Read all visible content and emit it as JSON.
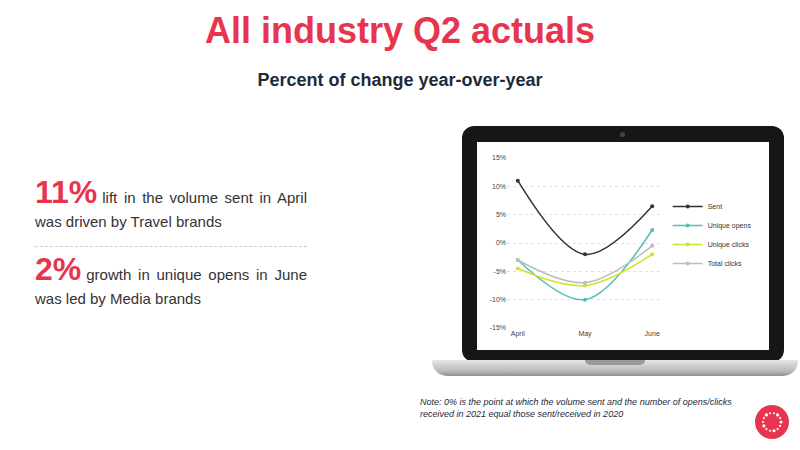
{
  "header": {
    "title": "All industry Q2 actuals",
    "subtitle": "Percent of change year-over-year"
  },
  "callouts": [
    {
      "figure": "11%",
      "text": "lift in the volume sent in April was driven by Travel brands"
    },
    {
      "figure": "2%",
      "text": "growth in unique opens in June was led by Media brands"
    }
  ],
  "note": "Note: 0% is the point at which the volume sent and the number of opens/clicks received in 2021 equal those sent/received in 2020",
  "chart_data": {
    "type": "line",
    "categories": [
      "April",
      "May",
      "June"
    ],
    "series": [
      {
        "name": "Sent",
        "color": "#333333",
        "values": [
          11,
          -2,
          6.5
        ]
      },
      {
        "name": "Unique opens",
        "color": "#4fc1b8",
        "values": [
          -3,
          -10,
          2.3
        ]
      },
      {
        "name": "Unique clicks",
        "color": "#d4e02a",
        "values": [
          -4.5,
          -7.5,
          -2
        ]
      },
      {
        "name": "Total clicks",
        "color": "#bdbdbd",
        "values": [
          -3,
          -7,
          -0.5
        ]
      }
    ],
    "ylim": [
      -15,
      15
    ],
    "yticks": [
      {
        "value": -15,
        "label": "-15%"
      },
      {
        "value": -10,
        "label": "-10%"
      },
      {
        "value": -5,
        "label": "-5%"
      },
      {
        "value": 0,
        "label": "0%"
      },
      {
        "value": 5,
        "label": "5%"
      },
      {
        "value": 10,
        "label": "10%"
      },
      {
        "value": 15,
        "label": "15%"
      }
    ],
    "grid": true,
    "legend": "right",
    "marker": "circle",
    "line_style": "solid"
  }
}
